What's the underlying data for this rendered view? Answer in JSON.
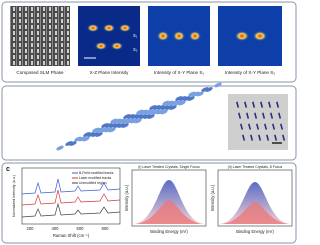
{
  "panel_a": {
    "captions": [
      "Composed SLM Phase",
      "X-Z Plane Intensity",
      "Intensity of X-Y Plane S₁",
      "Intensity of X-Y Plane S₂"
    ],
    "markers": [
      "S₁",
      "S₂"
    ]
  },
  "panel_c": {
    "label": "c",
    "raman": {
      "legend": [
        "B-Field modified tracks",
        "Laser modified tracks",
        "Unmodified region"
      ],
      "x_label": "Raman Shift (cm⁻¹)",
      "y_label": "Normalized Intensity (a.u.)",
      "x_ticks": [
        "200",
        "400",
        "600",
        "800"
      ]
    },
    "xps": [
      {
        "title": "(i) Laser Treated Crystals, Single Focus",
        "x_label": "Binding Energy (eV)",
        "y_label": "Intensity (a.u.)"
      },
      {
        "title": "(ii) Laser Treated Crystals, 8 Focus",
        "x_label": "Binding Energy (eV)",
        "y_label": "Intensity (a.u.)"
      }
    ]
  }
}
